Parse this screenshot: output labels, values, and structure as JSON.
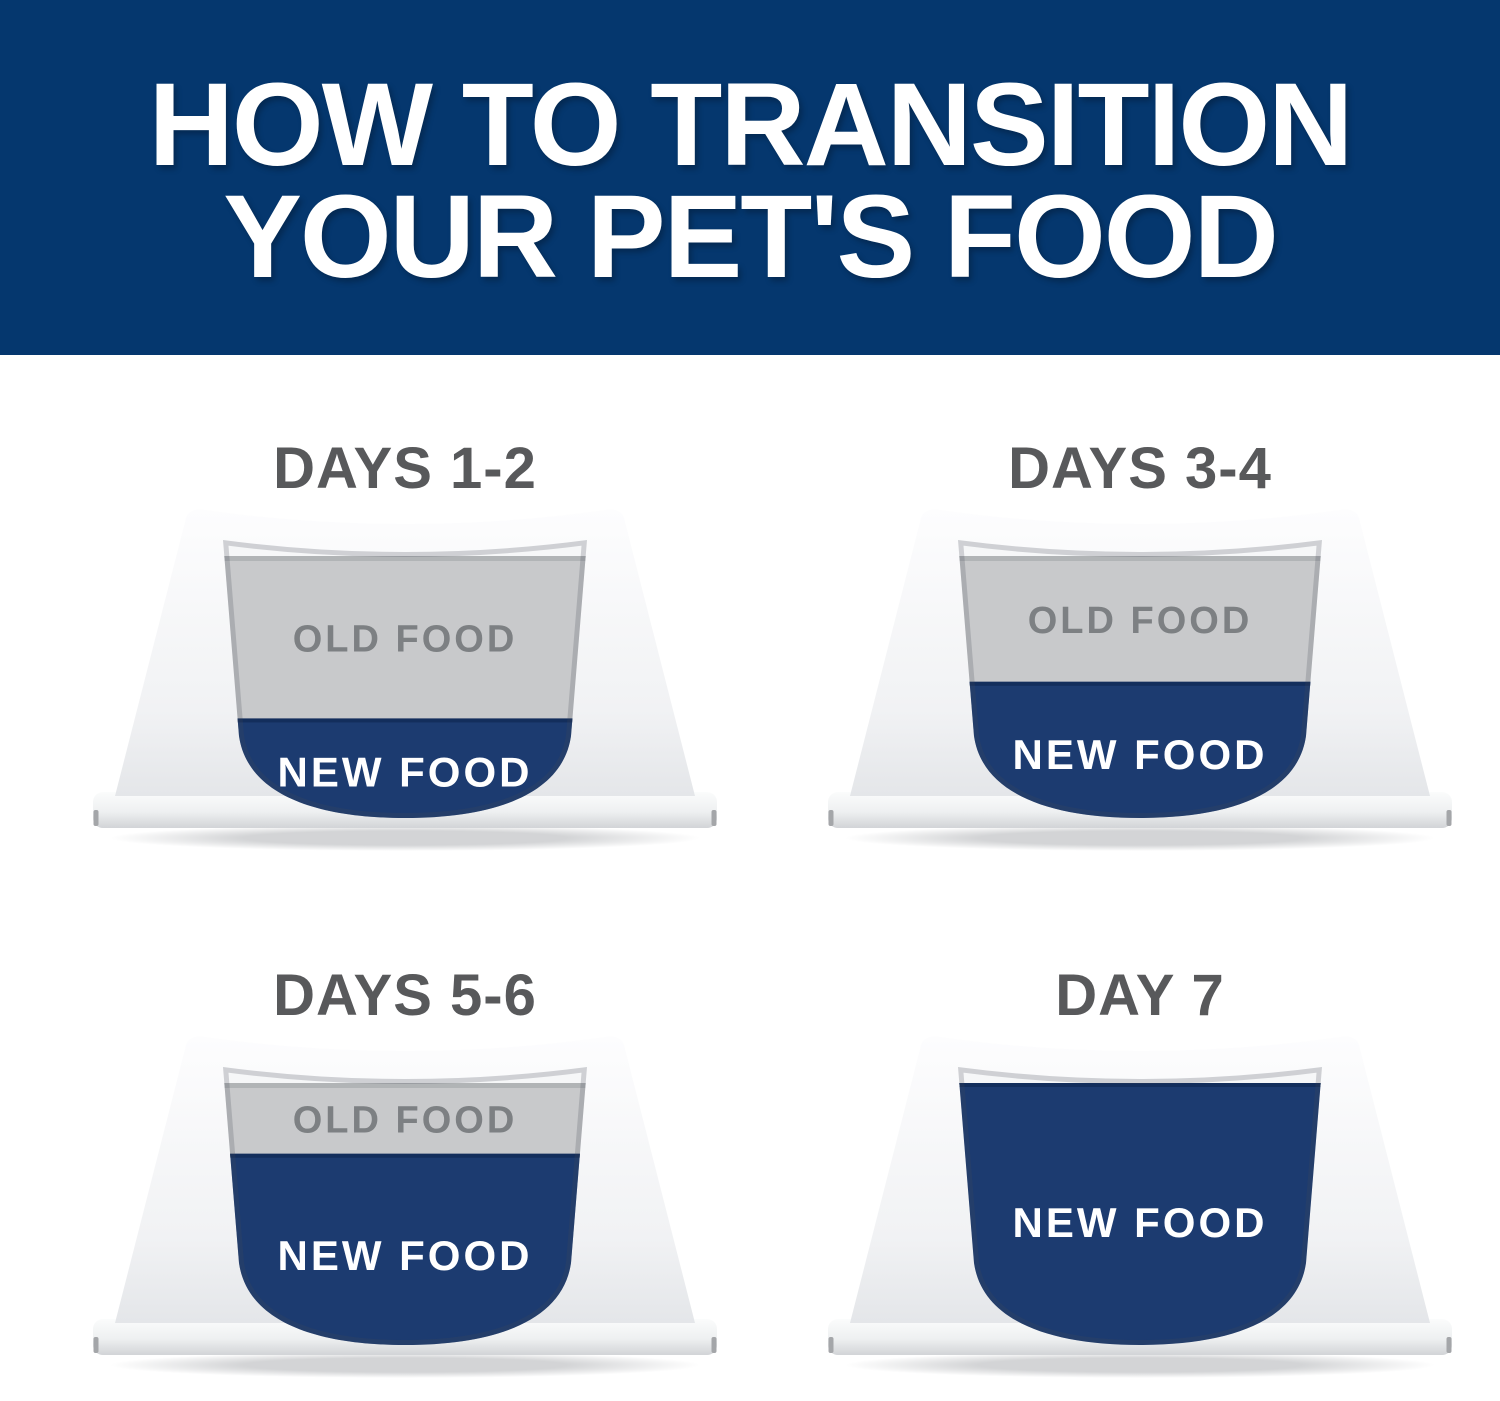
{
  "header": {
    "title_line1": "HOW TO TRANSITION",
    "title_line2": "YOUR PET'S FOOD",
    "background_color": "#05376e",
    "text_color": "#ffffff"
  },
  "colors": {
    "old_food_fill": "#c8c9cb",
    "old_food_text": "#7d8083",
    "new_food_fill": "#1c3b70",
    "new_food_edge": "#122d58",
    "new_food_text": "#ffffff",
    "rim_fill": "#f6f7f8",
    "day_label_text": "#58595b"
  },
  "bowls": [
    {
      "label": "DAYS 1-2",
      "old_food_label": "OLD FOOD",
      "new_food_label": "NEW FOOD",
      "new_food_level": 0.38
    },
    {
      "label": "DAYS 3-4",
      "old_food_label": "OLD FOOD",
      "new_food_label": "NEW FOOD",
      "new_food_level": 0.52
    },
    {
      "label": "DAYS 5-6",
      "old_food_label": "OLD FOOD",
      "new_food_label": "NEW FOOD",
      "new_food_level": 0.73
    },
    {
      "label": "DAY 7",
      "old_food_label": null,
      "new_food_label": "NEW FOOD",
      "new_food_level": 1.0
    }
  ]
}
